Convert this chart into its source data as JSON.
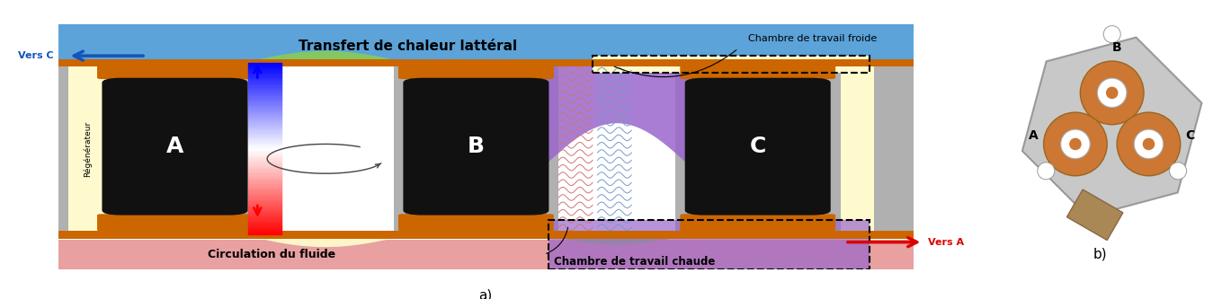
{
  "bg_color": "#ffffff",
  "blue_bar_color": "#5ba3d9",
  "pink_bar_color": "#e8a0a0",
  "orange_color": "#cc6600",
  "gray_color": "#b0b0b0",
  "dark_gray": "#888888",
  "black_color": "#111111",
  "yellow_light": "#fffacd",
  "yellow_mid": "#f5e070",
  "green_color": "#88cc55",
  "purple_color": "#9966cc",
  "blue_arrow": "#1155bb",
  "red_color": "#dd0000",
  "text_transfert": "Transfert de chaleur lattéral",
  "text_chambre_froide": "Chambre de travail froide",
  "text_chambre_chaude": "Chambre de travail chaude",
  "text_circulation": "Circulation du fluide",
  "text_regenerateur": "Régénérateur",
  "text_vers_c": "Vers C",
  "text_vers_a": "Vers A",
  "title_a": "a)",
  "title_b": "b)"
}
